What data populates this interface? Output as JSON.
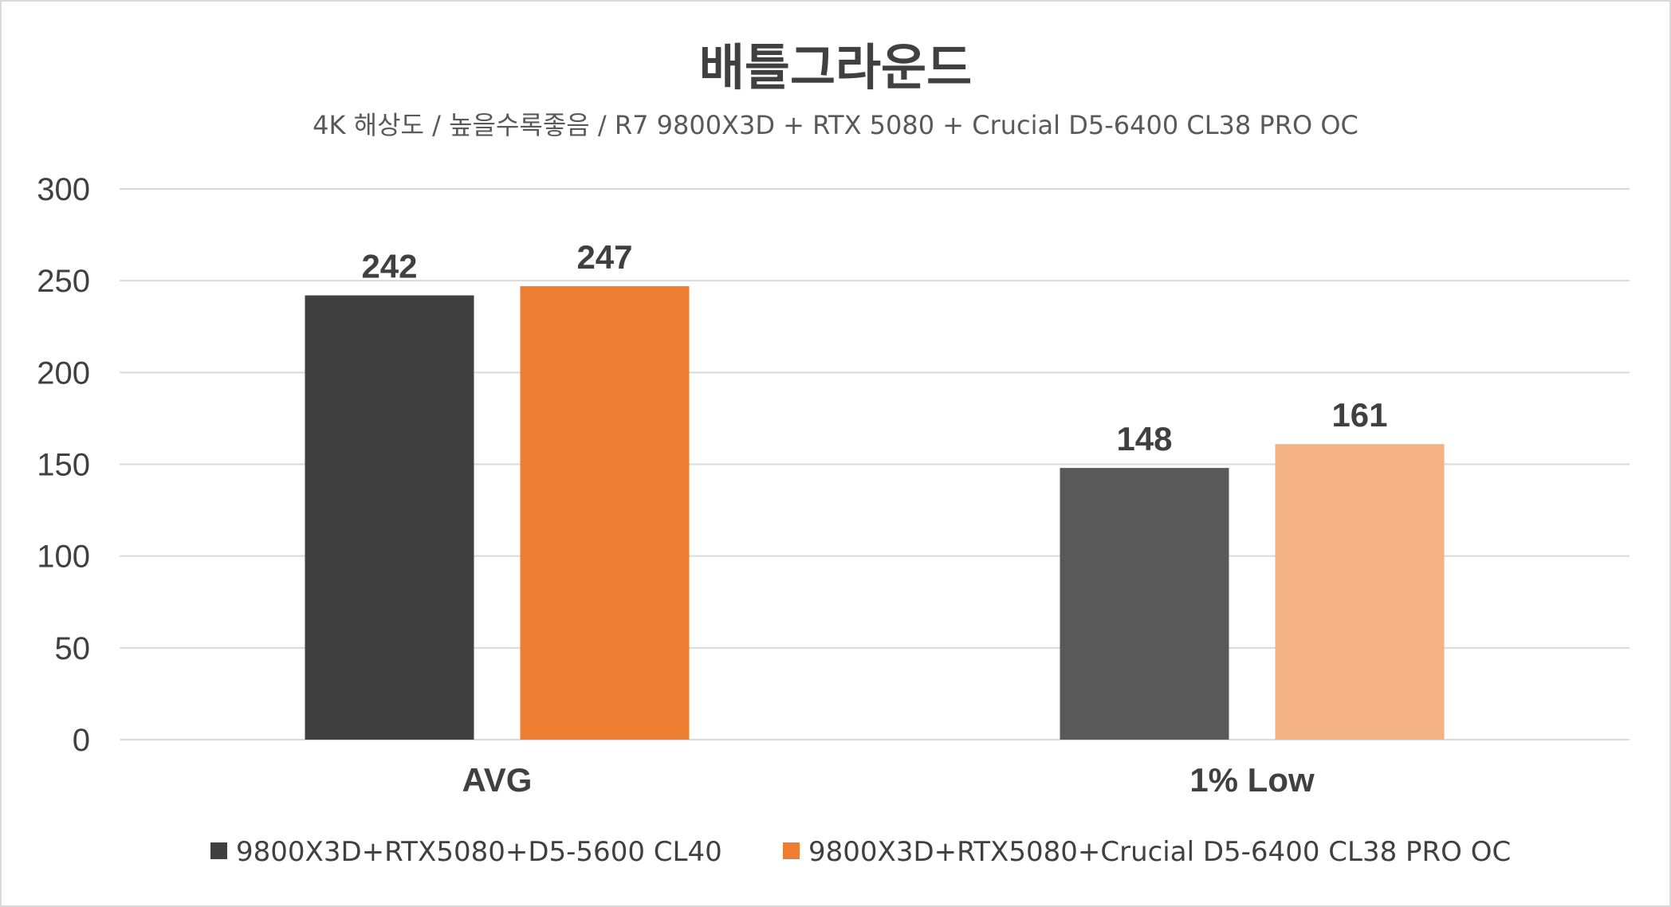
{
  "chart_data": {
    "type": "bar",
    "title": "배틀그라운드",
    "subtitle": "4K 해상도 / 높을수록좋음 / R7 9800X3D + RTX 5080 + Crucial D5-6400 CL38 PRO OC",
    "categories": [
      "AVG",
      "1% Low"
    ],
    "ylim": [
      0,
      300
    ],
    "yticks": [
      0,
      50,
      100,
      150,
      200,
      250,
      300
    ],
    "grid": true,
    "legend_position": "bottom",
    "series": [
      {
        "name": "9800X3D+RTX5080+D5-5600 CL40",
        "values": [
          242,
          148
        ],
        "colors": [
          "#404040",
          "#595959"
        ],
        "legend_color": "#404040"
      },
      {
        "name": "9800X3D+RTX5080+Crucial D5-6400 CL38 PRO OC",
        "values": [
          247,
          161
        ],
        "colors": [
          "#ed7d31",
          "#f4b183"
        ],
        "legend_color": "#ed7d31"
      }
    ]
  }
}
